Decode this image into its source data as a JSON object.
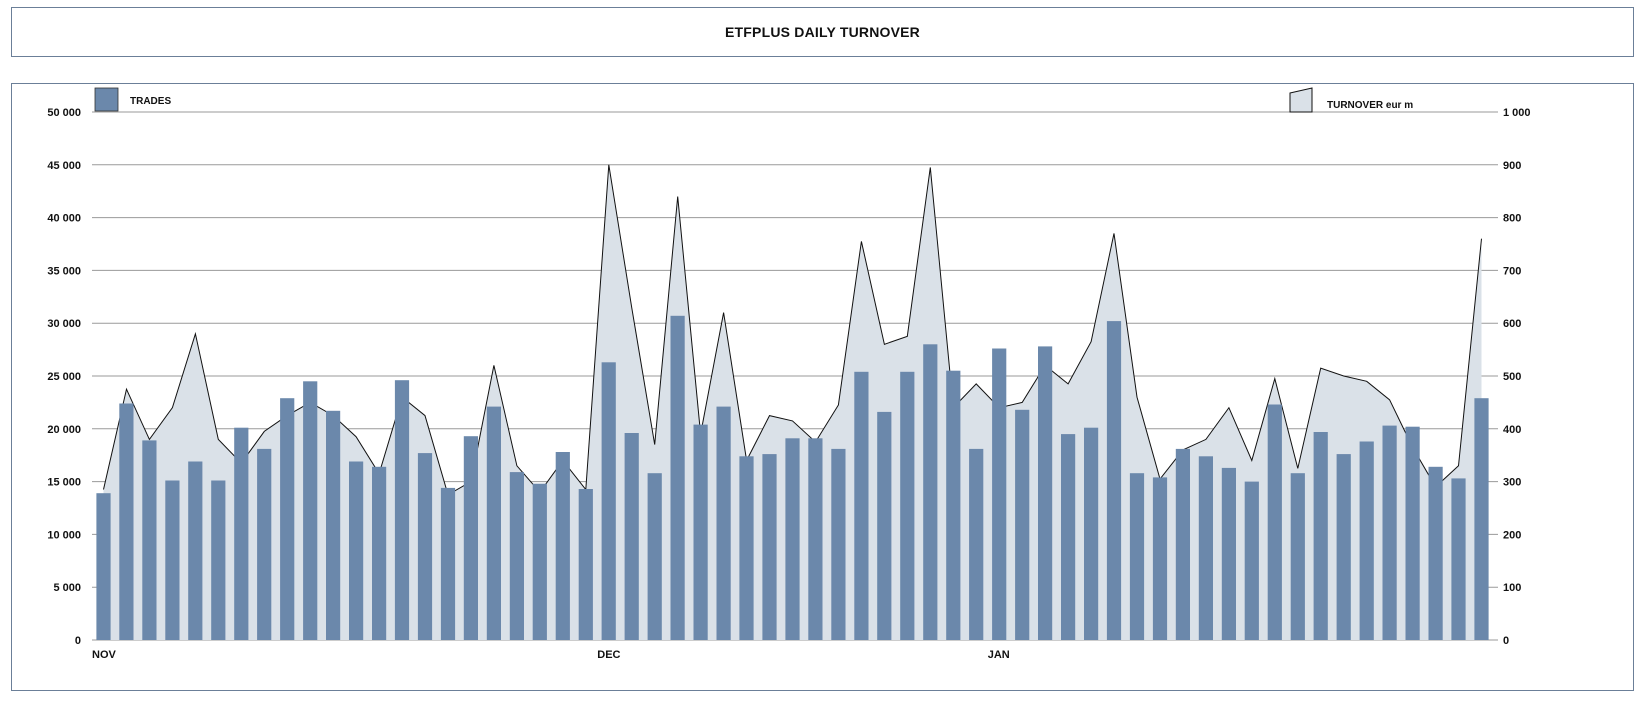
{
  "title": "ETFPLUS DAILY TURNOVER",
  "colors": {
    "bar": "#6b88ab",
    "area_fill": "#dae1e8",
    "area_line": "#111111",
    "grid": "#9a9a9a",
    "frame": "#6b7f98"
  },
  "chart_data": {
    "type": "bar",
    "title": "ETFPLUS DAILY TURNOVER",
    "x_labels": [
      {
        "index": 0,
        "label": "NOV"
      },
      {
        "index": 22,
        "label": "DEC"
      },
      {
        "index": 39,
        "label": "JAN"
      }
    ],
    "y_left": {
      "ylim": [
        0,
        50000
      ],
      "ticks": [
        "0",
        "5 000",
        "10 000",
        "15 000",
        "20 000",
        "25 000",
        "30 000",
        "35 000",
        "40 000",
        "45 000",
        "50 000"
      ]
    },
    "y_right": {
      "ylim": [
        0,
        1000
      ],
      "ticks": [
        "0",
        "100",
        "200",
        "300",
        "400",
        "500",
        "600",
        "700",
        "800",
        "900",
        "1 000"
      ]
    },
    "grid": true,
    "legend": [
      {
        "name": "TRADES",
        "position": "top-left"
      },
      {
        "name": "TURNOVER eur m",
        "position": "top-right"
      }
    ],
    "series": [
      {
        "name": "TRADES",
        "kind": "bar",
        "axis": "left",
        "values": [
          13900,
          22400,
          18900,
          15100,
          16900,
          15100,
          20100,
          18100,
          22900,
          24500,
          21700,
          16900,
          16400,
          24600,
          17700,
          14400,
          19300,
          22100,
          15900,
          14800,
          17800,
          14300,
          26300,
          19600,
          15800,
          30700,
          20400,
          22100,
          17400,
          17600,
          19100,
          19100,
          18100,
          25400,
          21600,
          25400,
          28000,
          25500,
          18100,
          27600,
          21800,
          27800,
          19500,
          20100,
          30200,
          15800,
          15400,
          18100,
          17400,
          16300,
          15000,
          22300,
          15800,
          19700,
          17600,
          18800,
          20300,
          20200,
          16400,
          15300,
          22900
        ]
      },
      {
        "name": "TURNOVER eur m",
        "kind": "area",
        "axis": "right",
        "values": [
          285,
          475,
          380,
          440,
          580,
          380,
          335,
          395,
          425,
          450,
          425,
          385,
          315,
          460,
          425,
          275,
          300,
          520,
          330,
          280,
          340,
          285,
          900,
          630,
          370,
          840,
          390,
          620,
          340,
          425,
          415,
          375,
          445,
          755,
          560,
          575,
          895,
          440,
          485,
          440,
          450,
          520,
          485,
          565,
          770,
          460,
          305,
          360,
          380,
          440,
          340,
          495,
          325,
          515,
          500,
          490,
          455,
          365,
          290,
          330,
          760
        ]
      }
    ]
  }
}
